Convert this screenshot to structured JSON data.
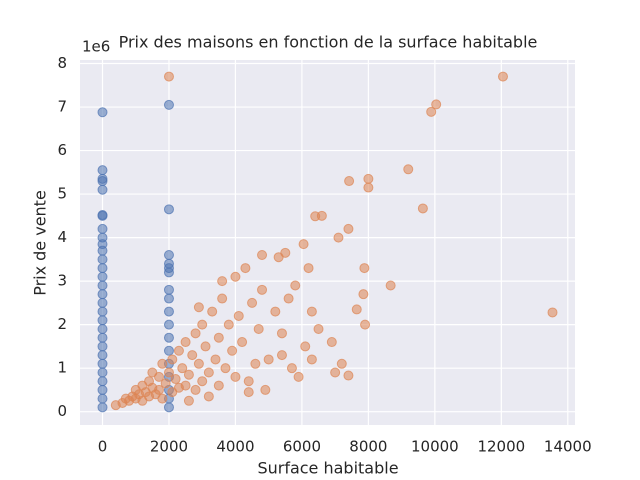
{
  "chart_data": {
    "type": "scatter",
    "title": "Prix des maisons en fonction de la surface habitable",
    "x_label": "Surface habitable",
    "y_label": "Prix de vente",
    "y_offset_label": "1e6",
    "xlim": [
      -677,
      14217
    ],
    "ylim": [
      -306000,
      8081000
    ],
    "xticks": [
      0,
      2000,
      4000,
      6000,
      8000,
      10000,
      12000,
      14000
    ],
    "yticks": [
      {
        "value": 0,
        "label": "0"
      },
      {
        "value": 1000000,
        "label": "1"
      },
      {
        "value": 2000000,
        "label": "2"
      },
      {
        "value": 3000000,
        "label": "3"
      },
      {
        "value": 4000000,
        "label": "4"
      },
      {
        "value": 5000000,
        "label": "5"
      },
      {
        "value": 6000000,
        "label": "6"
      },
      {
        "value": 7000000,
        "label": "7"
      },
      {
        "value": 8000000,
        "label": "8"
      }
    ],
    "grid": true,
    "series": [
      {
        "color": "#4c72b0",
        "x": [
          0,
          0,
          0,
          0,
          0,
          0,
          0,
          0,
          0,
          0,
          0,
          0,
          0,
          0,
          0,
          0,
          0,
          0,
          0,
          0,
          0,
          0,
          0,
          0,
          0,
          0,
          0,
          0,
          0,
          2000,
          2000,
          2000,
          2000,
          2000,
          2000,
          2000,
          2000,
          2000,
          2000,
          2000,
          2000,
          2000,
          2000,
          2000,
          2000,
          2000
        ],
        "y": [
          100000,
          300000,
          500000,
          700000,
          900000,
          1100000,
          1300000,
          1500000,
          1700000,
          1900000,
          2100000,
          2300000,
          2500000,
          2700000,
          2900000,
          3100000,
          3300000,
          3500000,
          3700000,
          3850000,
          4000000,
          4200000,
          4500000,
          4520000,
          5100000,
          5300000,
          5350000,
          5550000,
          6880000,
          100000,
          300000,
          500000,
          800000,
          1100000,
          1400000,
          1700000,
          2000000,
          2300000,
          2600000,
          2800000,
          3200000,
          3300000,
          3400000,
          3600000,
          4650000,
          7050000
        ]
      },
      {
        "color": "#dd8452",
        "x": [
          12050,
          10040,
          9890,
          9200,
          9640,
          13540,
          8000,
          8000,
          7420,
          8670,
          7850,
          7880,
          7400,
          7100,
          6400,
          6600,
          6200,
          6050,
          5500,
          5300,
          4800,
          7650,
          7900,
          7200,
          7400,
          7000,
          6900,
          6500,
          6300,
          5800,
          5400,
          5000,
          4900,
          5900,
          400,
          600,
          700,
          800,
          900,
          1000,
          1000,
          1100,
          1200,
          1200,
          1300,
          1400,
          1400,
          1500,
          1500,
          1600,
          1700,
          1700,
          1800,
          1800,
          1900,
          2000,
          2100,
          2100,
          2200,
          2300,
          2300,
          2400,
          2500,
          2500,
          2600,
          2700,
          2800,
          2800,
          2900,
          3000,
          3000,
          3100,
          3200,
          3300,
          3400,
          3500,
          3500,
          3600,
          3700,
          3800,
          3900,
          4000,
          4000,
          4100,
          4200,
          4300,
          4400,
          4500,
          4600,
          4700,
          4800,
          4400,
          3200,
          2600,
          3600,
          2900,
          5200,
          5600,
          5400,
          6100,
          5700,
          6300,
          2000
        ],
        "y": [
          7700000,
          7060000,
          6890000,
          5570000,
          4670000,
          2280000,
          5350000,
          5150000,
          5300000,
          2900000,
          2700000,
          3300000,
          4200000,
          4000000,
          4490000,
          4500000,
          3300000,
          3850000,
          3650000,
          3550000,
          3600000,
          2350000,
          2000000,
          1100000,
          830000,
          900000,
          1600000,
          1900000,
          2300000,
          2900000,
          1800000,
          1200000,
          500000,
          800000,
          150000,
          200000,
          300000,
          250000,
          350000,
          300000,
          500000,
          400000,
          600000,
          250000,
          450000,
          700000,
          350000,
          550000,
          900000,
          400000,
          800000,
          500000,
          1100000,
          300000,
          650000,
          900000,
          1200000,
          450000,
          750000,
          1400000,
          550000,
          1000000,
          1600000,
          600000,
          850000,
          1300000,
          1800000,
          500000,
          1100000,
          2000000,
          700000,
          1500000,
          900000,
          2300000,
          1200000,
          1700000,
          600000,
          2600000,
          1000000,
          2000000,
          1400000,
          3100000,
          800000,
          2200000,
          1600000,
          3300000,
          700000,
          2500000,
          1100000,
          1900000,
          2800000,
          450000,
          350000,
          250000,
          3000000,
          2400000,
          2300000,
          2600000,
          1300000,
          1500000,
          1000000,
          1200000,
          7700000
        ]
      }
    ]
  }
}
